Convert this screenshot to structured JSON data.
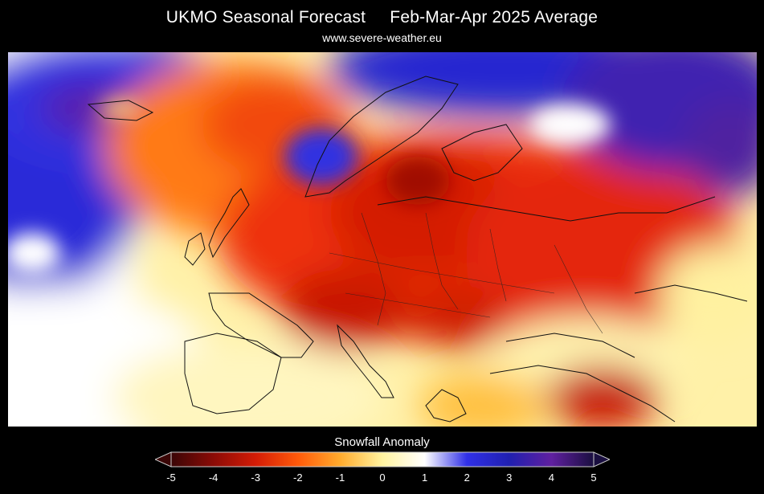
{
  "header": {
    "title": "UKMO Seasonal Forecast     Feb-Mar-Apr 2025 Average",
    "subtitle": "www.severe-weather.eu"
  },
  "legend": {
    "title": "Snowfall Anomaly",
    "min": -5,
    "max": 5,
    "ticks": [
      "-5",
      "-4",
      "-3",
      "-2",
      "-1",
      "0",
      "1",
      "2",
      "3",
      "4",
      "5"
    ],
    "colors": [
      "#3a0606",
      "#8b0b06",
      "#d41c06",
      "#ff5a0a",
      "#ffab2d",
      "#fff3a0",
      "#ffffff",
      "#3030e8",
      "#2020b0",
      "#6020a0",
      "#1a0f40"
    ]
  },
  "map": {
    "region": "Europe"
  }
}
